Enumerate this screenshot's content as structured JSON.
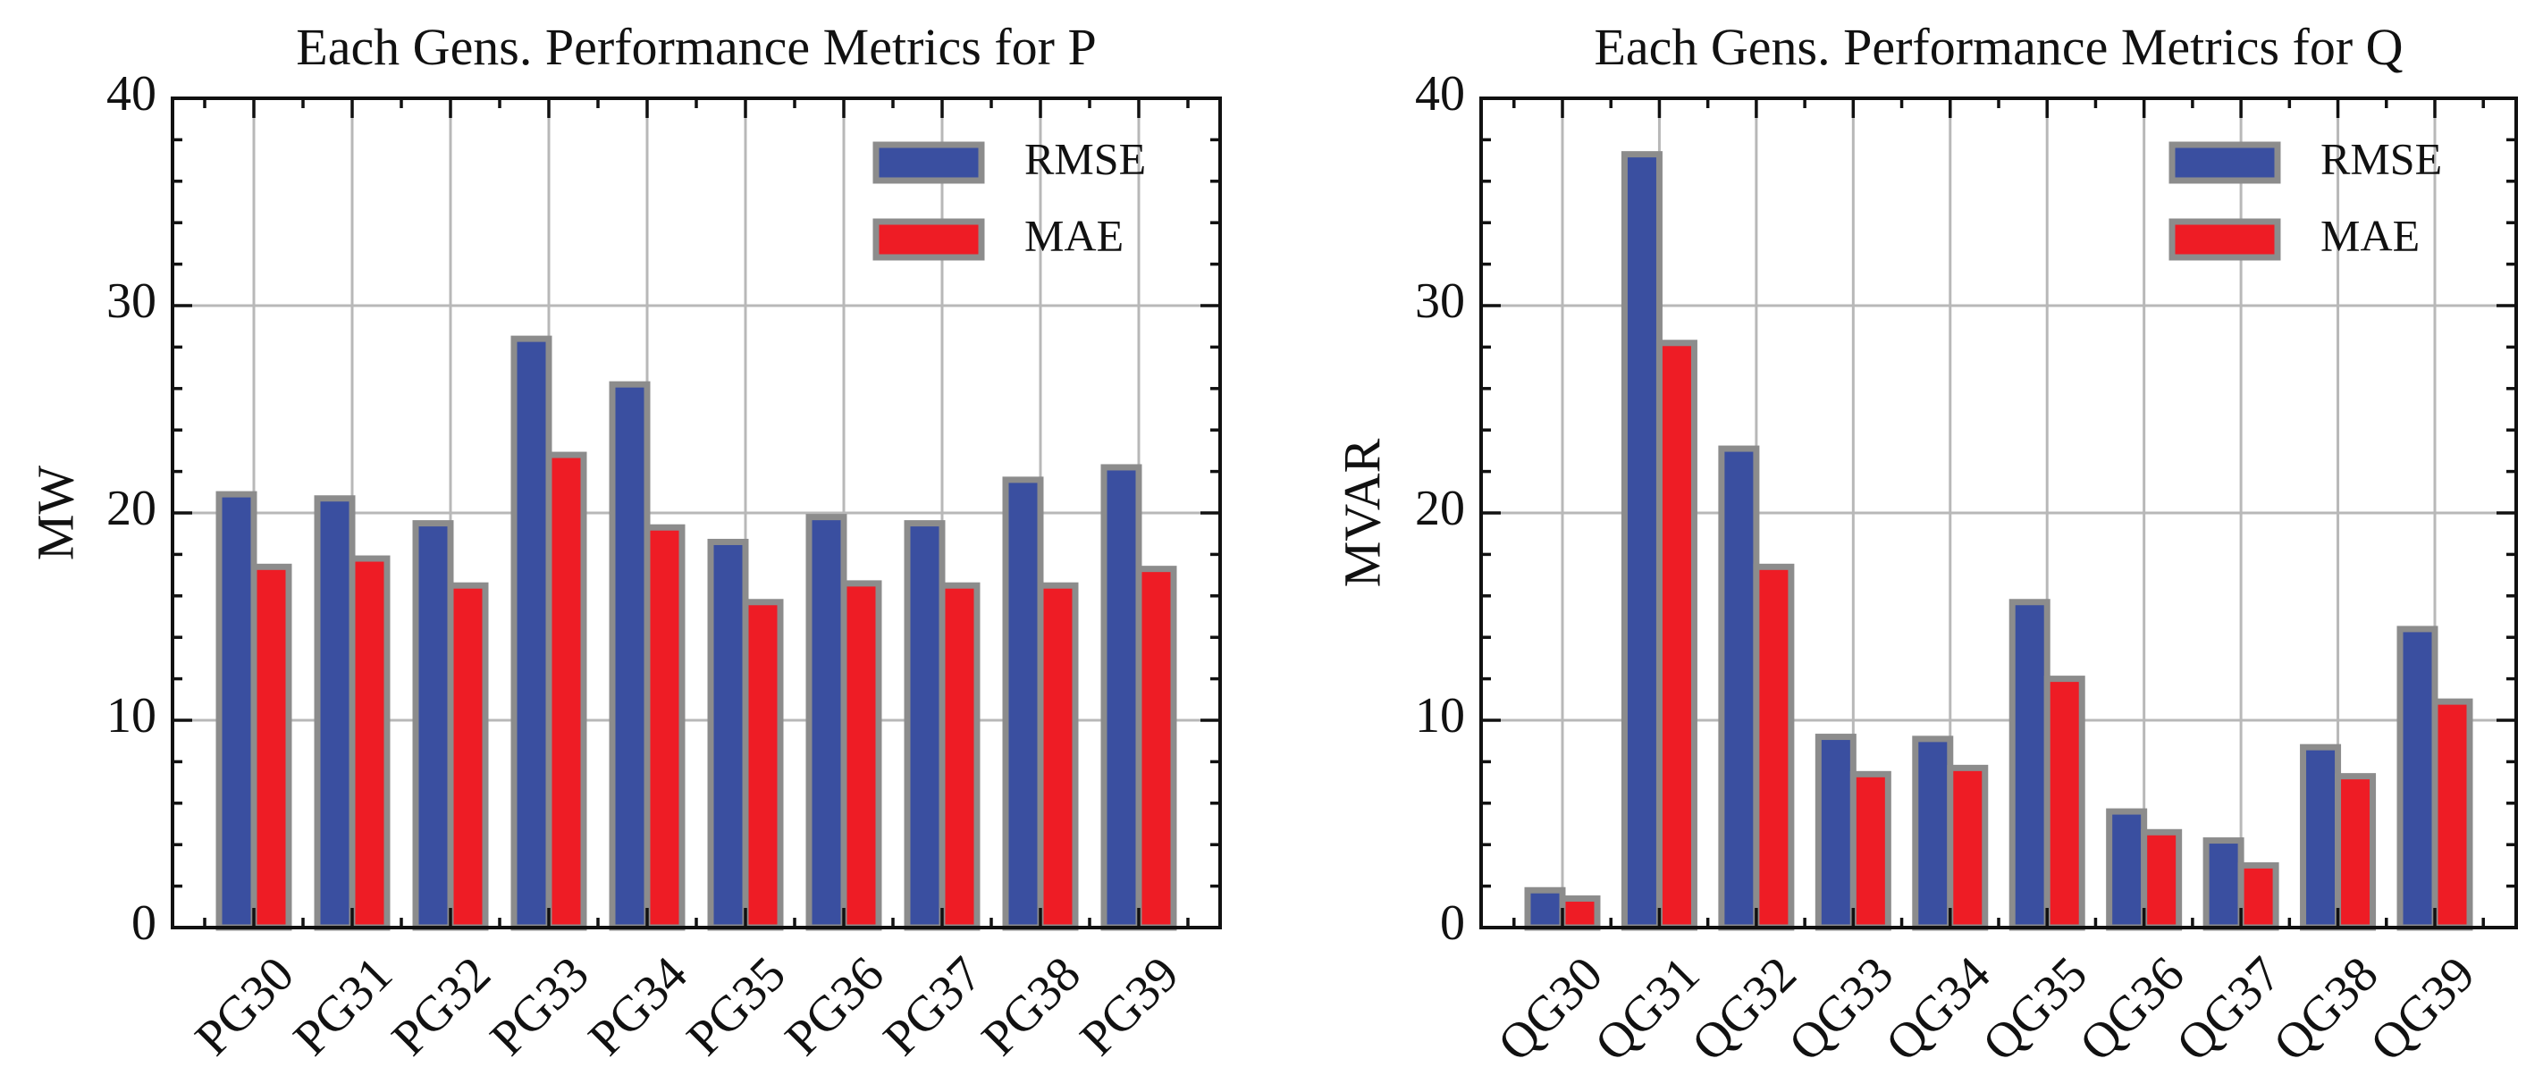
{
  "chart_data": [
    {
      "type": "bar",
      "title": "Each Gens. Performance Metrics for P",
      "xlabel": "",
      "ylabel": "MW",
      "ylim": [
        0,
        40
      ],
      "yticks": [
        0,
        10,
        20,
        30,
        40
      ],
      "grid": true,
      "legend_position": "top-right",
      "categories": [
        "PG30",
        "PG31",
        "PG32",
        "PG33",
        "PG34",
        "PG35",
        "PG36",
        "PG37",
        "PG38",
        "PG39"
      ],
      "series": [
        {
          "name": "RMSE",
          "color": "#3a4fa0",
          "values": [
            20.9,
            20.7,
            19.5,
            28.4,
            26.2,
            18.6,
            19.8,
            19.5,
            21.6,
            22.2
          ]
        },
        {
          "name": "MAE",
          "color": "#ee1c25",
          "values": [
            17.4,
            17.8,
            16.5,
            22.8,
            19.3,
            15.7,
            16.6,
            16.5,
            16.5,
            17.3
          ]
        }
      ]
    },
    {
      "type": "bar",
      "title": "Each Gens. Performance Metrics for Q",
      "xlabel": "",
      "ylabel": "MVAR",
      "ylim": [
        0,
        40
      ],
      "yticks": [
        0,
        10,
        20,
        30,
        40
      ],
      "grid": true,
      "legend_position": "top-right",
      "categories": [
        "QG30",
        "QG31",
        "QG32",
        "QG33",
        "QG34",
        "QG35",
        "QG36",
        "QG37",
        "QG38",
        "QG39"
      ],
      "series": [
        {
          "name": "RMSE",
          "color": "#3a4fa0",
          "values": [
            1.8,
            37.3,
            23.1,
            9.2,
            9.1,
            15.7,
            5.6,
            4.2,
            8.7,
            14.4
          ]
        },
        {
          "name": "MAE",
          "color": "#ee1c25",
          "values": [
            1.4,
            28.2,
            17.4,
            7.4,
            7.7,
            12.0,
            4.6,
            3.0,
            7.3,
            10.9
          ]
        }
      ]
    }
  ]
}
